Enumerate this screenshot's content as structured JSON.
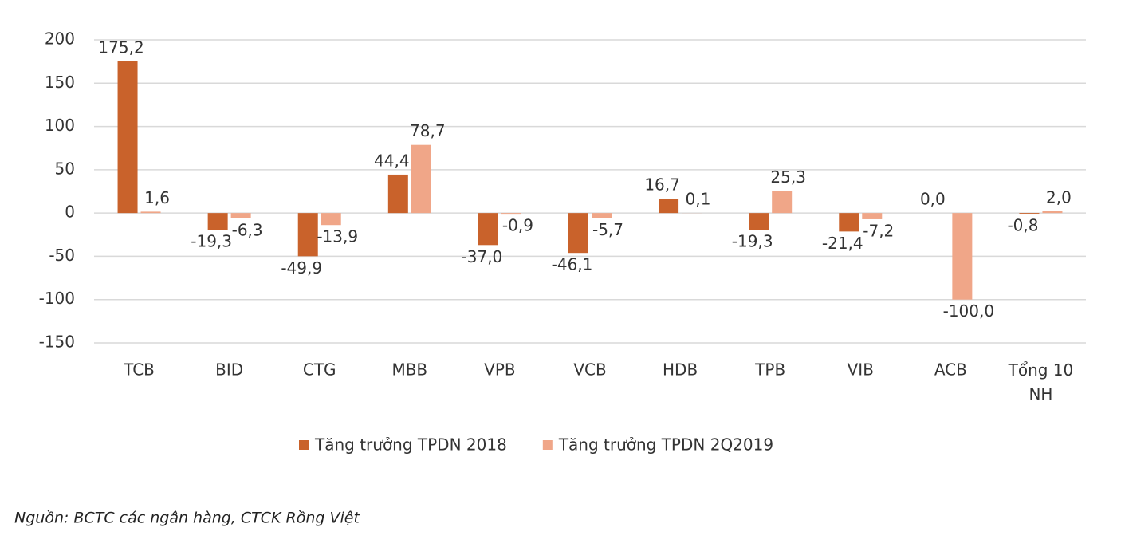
{
  "chart_data": {
    "type": "bar",
    "categories": [
      "TCB",
      "BID",
      "CTG",
      "MBB",
      "VPB",
      "VCB",
      "HDB",
      "TPB",
      "VIB",
      "ACB",
      "Tổng 10 NH"
    ],
    "series": [
      {
        "name": "Tăng trưởng TPDN 2018",
        "color": "#c9622b",
        "values": [
          175.2,
          -19.3,
          -49.9,
          44.4,
          -37.0,
          -46.1,
          16.7,
          -19.3,
          -21.4,
          0.0,
          -0.8
        ],
        "value_labels": [
          "175,2",
          "-19,3",
          "-49,9",
          "44,4",
          "-37,0",
          "-46,1",
          "16,7",
          "-19,3",
          "-21,4",
          "0,0",
          "-0,8"
        ]
      },
      {
        "name": "Tăng trưởng TPDN 2Q2019",
        "color": "#f0a688",
        "values": [
          1.6,
          -6.3,
          -13.9,
          78.7,
          -0.9,
          -5.7,
          0.1,
          25.3,
          -7.2,
          -100.0,
          2.0
        ],
        "value_labels": [
          "1,6",
          "-6,3",
          "-13,9",
          "78,7",
          "-0,9",
          "-5,7",
          "0,1",
          "25,3",
          "-7,2",
          "-100,0",
          "2,0"
        ]
      }
    ],
    "ylim": [
      -150,
      200
    ],
    "yticks": [
      200,
      150,
      100,
      50,
      0,
      -50,
      -100,
      -150
    ],
    "grid": true,
    "legend": "bottom",
    "source": "Nguồn: BCTC các ngân hàng, CTCK Rồng Việt"
  }
}
